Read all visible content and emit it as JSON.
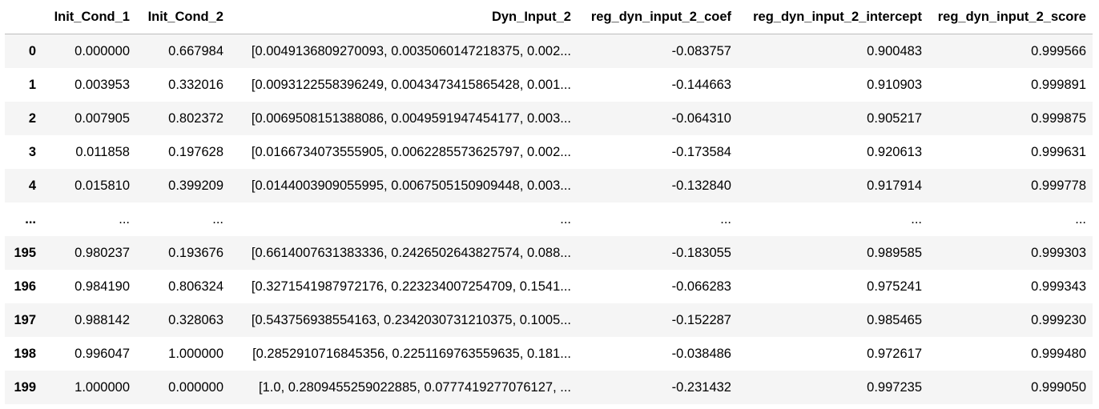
{
  "table": {
    "columns": [
      "",
      "Init_Cond_1",
      "Init_Cond_2",
      "Dyn_Input_2",
      "reg_dyn_input_2_coef",
      "reg_dyn_input_2_intercept",
      "reg_dyn_input_2_score"
    ],
    "rows": [
      [
        "0",
        "0.000000",
        "0.667984",
        "[0.0049136809270093, 0.0035060147218375, 0.002...",
        "-0.083757",
        "0.900483",
        "0.999566"
      ],
      [
        "1",
        "0.003953",
        "0.332016",
        "[0.0093122558396249, 0.0043473415865428, 0.001...",
        "-0.144663",
        "0.910903",
        "0.999891"
      ],
      [
        "2",
        "0.007905",
        "0.802372",
        "[0.0069508151388086, 0.0049591947454177, 0.003...",
        "-0.064310",
        "0.905217",
        "0.999875"
      ],
      [
        "3",
        "0.011858",
        "0.197628",
        "[0.0166734073555905, 0.0062285573625797, 0.002...",
        "-0.173584",
        "0.920613",
        "0.999631"
      ],
      [
        "4",
        "0.015810",
        "0.399209",
        "[0.0144003909055995, 0.0067505150909448, 0.003...",
        "-0.132840",
        "0.917914",
        "0.999778"
      ],
      [
        "...",
        "...",
        "...",
        "...",
        "...",
        "...",
        "..."
      ],
      [
        "195",
        "0.980237",
        "0.193676",
        "[0.6614007631383336, 0.2426502643827574, 0.088...",
        "-0.183055",
        "0.989585",
        "0.999303"
      ],
      [
        "196",
        "0.984190",
        "0.806324",
        "[0.3271541987972176, 0.223234007254709, 0.1541...",
        "-0.066283",
        "0.975241",
        "0.999343"
      ],
      [
        "197",
        "0.988142",
        "0.328063",
        "[0.543756938554163, 0.2342030731210375, 0.1005...",
        "-0.152287",
        "0.985465",
        "0.999230"
      ],
      [
        "198",
        "0.996047",
        "1.000000",
        "[0.2852910716845356, 0.2251169763559635, 0.181...",
        "-0.038486",
        "0.972617",
        "0.999480"
      ],
      [
        "199",
        "1.000000",
        "0.000000",
        "[1.0, 0.2809455259022885, 0.0777419277076127, ...",
        "-0.231432",
        "0.997235",
        "0.999050"
      ]
    ]
  }
}
